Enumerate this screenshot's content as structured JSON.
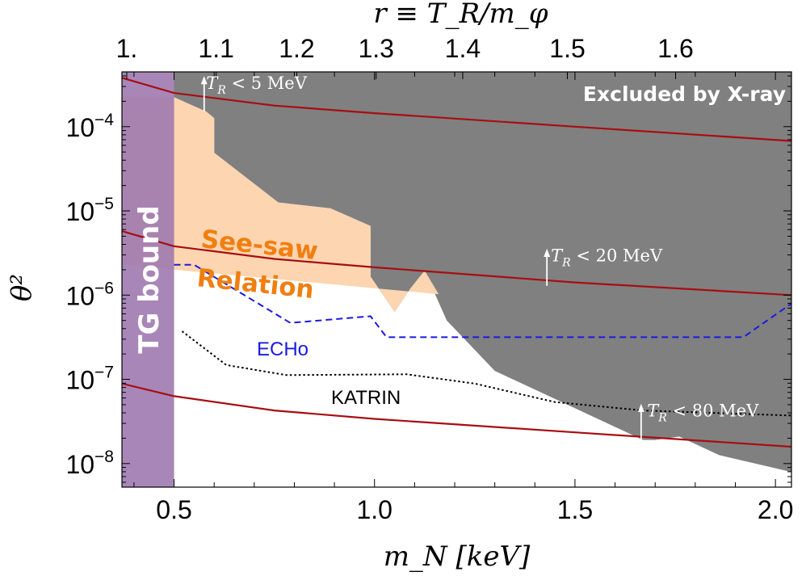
{
  "chart_data": {
    "type": "line",
    "xlabel": "m_N [keV]",
    "ylabel": "θ²",
    "top_axis_label": "r ≡ T_R/m_φ",
    "xlim": [
      0.37,
      2.04
    ],
    "ylim_log10": [
      -8.28,
      -3.35
    ],
    "y_log_scale": true,
    "x_ticks": [
      {
        "value": 0.5,
        "label": "0.5"
      },
      {
        "value": 1.0,
        "label": "1.0"
      },
      {
        "value": 1.5,
        "label": "1.5"
      },
      {
        "value": 2.0,
        "label": "2.0"
      }
    ],
    "y_ticks": [
      {
        "value": 0.0001,
        "base": "10",
        "exp": "−4"
      },
      {
        "value": 1e-05,
        "base": "10",
        "exp": "−5"
      },
      {
        "value": 1e-06,
        "base": "10",
        "exp": "−6"
      },
      {
        "value": 1e-07,
        "base": "10",
        "exp": "−7"
      },
      {
        "value": 1e-08,
        "base": "10",
        "exp": "−8"
      }
    ],
    "top_ticks": [
      {
        "r": 1.0,
        "x": 0.382,
        "label": "1."
      },
      {
        "r": 1.1,
        "x": 0.605,
        "label": "1.1"
      },
      {
        "r": 1.2,
        "x": 0.806,
        "label": "1.2"
      },
      {
        "r": 1.3,
        "x": 1.004,
        "label": "1.3"
      },
      {
        "r": 1.4,
        "x": 1.22,
        "label": "1.4"
      },
      {
        "r": 1.5,
        "x": 1.481,
        "label": "1.5"
      },
      {
        "r": 1.6,
        "x": 1.751,
        "label": "1.6"
      }
    ],
    "regions": [
      {
        "name": "Excluded by X-ray",
        "color": "#808080",
        "polygon": [
          [
            0.5,
            -3.35
          ],
          [
            2.04,
            -3.35
          ],
          [
            2.04,
            -8.1
          ],
          [
            1.86,
            -7.9
          ],
          [
            1.76,
            -7.68
          ],
          [
            1.7,
            -7.72
          ],
          [
            1.67,
            -7.72
          ],
          [
            1.3,
            -6.9
          ],
          [
            1.18,
            -6.3
          ],
          [
            1.125,
            -5.71
          ],
          [
            1.09,
            -5.92
          ],
          [
            1.05,
            -6.2
          ],
          [
            0.99,
            -5.78
          ],
          [
            0.99,
            -5.18
          ],
          [
            0.89,
            -4.97
          ],
          [
            0.76,
            -4.9
          ],
          [
            0.6,
            -4.31
          ],
          [
            0.6,
            -3.9
          ],
          [
            0.58,
            -3.82
          ],
          [
            0.5,
            -3.82
          ]
        ]
      },
      {
        "name": "See-saw Relation",
        "color": "#fdd5b1",
        "polygon": [
          [
            0.37,
            -3.65
          ],
          [
            0.5,
            -3.65
          ],
          [
            0.58,
            -3.82
          ],
          [
            0.6,
            -3.9
          ],
          [
            0.6,
            -4.31
          ],
          [
            0.76,
            -4.9
          ],
          [
            0.89,
            -4.97
          ],
          [
            0.99,
            -5.18
          ],
          [
            0.99,
            -5.78
          ],
          [
            1.05,
            -6.2
          ],
          [
            1.09,
            -5.92
          ],
          [
            1.125,
            -5.71
          ],
          [
            1.16,
            -5.99
          ],
          [
            0.37,
            -5.64
          ]
        ]
      },
      {
        "name": "TG bound",
        "color": "#9e7ab0",
        "x_range": [
          0.37,
          0.5
        ]
      }
    ],
    "series": [
      {
        "name": "ECHo",
        "color": "#1a1ae0",
        "style": "dashed",
        "points": [
          [
            0.5,
            -5.64
          ],
          [
            0.55,
            -5.64
          ],
          [
            0.79,
            -6.33
          ],
          [
            0.99,
            -6.25
          ],
          [
            1.03,
            -6.5
          ],
          [
            1.92,
            -6.5
          ],
          [
            2.04,
            -6.1
          ]
        ]
      },
      {
        "name": "KATRIN",
        "color": "#000000",
        "style": "dotted",
        "points": [
          [
            0.52,
            -6.43
          ],
          [
            0.63,
            -6.83
          ],
          [
            0.78,
            -6.95
          ],
          [
            1.08,
            -6.94
          ],
          [
            1.25,
            -7.05
          ],
          [
            1.45,
            -7.27
          ],
          [
            1.67,
            -7.37
          ],
          [
            2.04,
            -7.43
          ]
        ]
      }
    ],
    "tr_curves": [
      {
        "label": "T_R < 5 MeV",
        "color": "#a60e12",
        "points": [
          [
            0.37,
            -3.42
          ],
          [
            0.5,
            -3.6
          ],
          [
            0.75,
            -3.75
          ],
          [
            1.0,
            -3.84
          ],
          [
            1.5,
            -4.0
          ],
          [
            2.04,
            -4.17
          ]
        ]
      },
      {
        "label": "T_R < 20 MeV",
        "color": "#a60e12",
        "points": [
          [
            0.37,
            -5.24
          ],
          [
            0.5,
            -5.42
          ],
          [
            0.75,
            -5.57
          ],
          [
            1.0,
            -5.67
          ],
          [
            1.5,
            -5.85
          ],
          [
            2.04,
            -6.0
          ]
        ]
      },
      {
        "label": "T_R < 80 MeV",
        "color": "#a60e12",
        "points": [
          [
            0.37,
            -7.05
          ],
          [
            0.5,
            -7.2
          ],
          [
            0.75,
            -7.37
          ],
          [
            1.0,
            -7.47
          ],
          [
            1.5,
            -7.63
          ],
          [
            2.04,
            -7.8
          ]
        ]
      }
    ],
    "annotations": [
      {
        "text_parts": [
          "T",
          "R",
          " < 5 MeV"
        ],
        "arrow_x": 0.575,
        "arrow_y": [
          -3.82,
          -3.42
        ],
        "text_pos": [
          0.58,
          -3.55
        ]
      },
      {
        "text_parts": [
          "T",
          "R",
          " < 20 MeV"
        ],
        "arrow_x": 1.43,
        "arrow_y": [
          -5.89,
          -5.47
        ],
        "text_pos": [
          1.44,
          -5.6
        ]
      },
      {
        "text_parts": [
          "T",
          "R",
          " < 80 MeV"
        ],
        "arrow_x": 1.665,
        "arrow_y": [
          -7.72,
          -7.31
        ],
        "text_pos": [
          1.68,
          -7.44
        ]
      }
    ],
    "text_labels": {
      "xray": "Excluded by X-ray",
      "seesaw_1": "See-saw",
      "seesaw_2": "Relation",
      "tg": "TG bound",
      "echo": "ECHo",
      "katrin": "KATRIN"
    }
  }
}
